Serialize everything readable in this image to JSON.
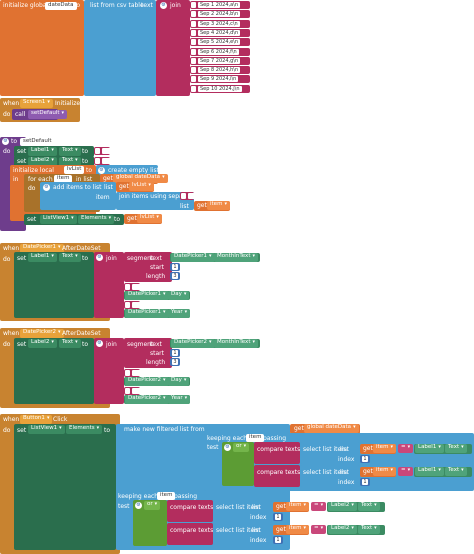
{
  "global_block": {
    "keyword": "initialize global",
    "var_name": "dateData",
    "to": "to",
    "list_from_csv": "list from csv table",
    "text": "text",
    "join": "join",
    "rows": [
      "Sep 1 2024,a\\n",
      "Sep 2 2024,b\\n",
      "Sep 3 2024,c\\n",
      "Sep 4 2024,d\\n",
      "Sep 5 2024,e\\n",
      "Sep 6 2024,f\\n",
      "Sep 7 2024,g\\n",
      "Sep 8 2024,h\\n",
      "Sep 9 2024,i\\n",
      "Sep 10 2024,j\\n"
    ]
  },
  "screen_init": {
    "when": "when",
    "component": "Screen1",
    "event": "Initialize",
    "do": "do",
    "call": "call",
    "proc": "setDefault"
  },
  "proc_def": {
    "to": "to",
    "name": "setDefault",
    "do": "do",
    "set": "set",
    "label1": "Label1",
    "label2": "Label2",
    "text_prop": "Text",
    "to_kw": "to",
    "init_local": "initialize local",
    "local_name": "lvList",
    "to2": "to",
    "create_empty": "create empty list",
    "in": "in",
    "for_each": "for each",
    "item": "item",
    "in_list": "in list",
    "get": "get",
    "global_dd": "global dateData",
    "do2": "do",
    "add_items": "add items to list",
    "list": "list",
    "lvlist_ref": "lvList",
    "item_kw": "item",
    "join_items": "join items using separator",
    "list_kw": "list",
    "item_ref": "item",
    "listview": "ListView1",
    "elements": "Elements"
  },
  "dp1": {
    "when": "when",
    "component": "DatePicker1",
    "event": "AfterDateSet",
    "do": "do",
    "set": "set",
    "label": "Label1",
    "prop": "Text",
    "to": "to",
    "join": "join",
    "segment": "segment",
    "text": "text",
    "start": "start",
    "length": "length",
    "month_prop": "MonthInText",
    "day_prop": "Day",
    "year_prop": "Year",
    "start_val": "1",
    "length_val": "3"
  },
  "dp2": {
    "when": "when",
    "component": "DatePicker2",
    "event": "AfterDateSet",
    "do": "do",
    "set": "set",
    "label": "Label2",
    "prop": "Text",
    "to": "to",
    "join": "join",
    "segment": "segment",
    "text": "text",
    "start": "start",
    "length": "length",
    "month_prop": "MonthInText",
    "day_prop": "Day",
    "year_prop": "Year",
    "start_val": "1",
    "length_val": "3"
  },
  "btn": {
    "when": "when",
    "component": "Button1",
    "event": "Click",
    "do": "do",
    "set": "set",
    "listview": "ListView1",
    "prop": "Elements",
    "to": "to",
    "filter": "make new filtered list from",
    "get": "get",
    "global_dd": "global dateData",
    "keeping": "keeping each",
    "item": "item",
    "passing": "passing",
    "test": "test",
    "or": "or",
    "compare": "compare texts",
    "select": "select list item",
    "list": "list",
    "index": "index",
    "eq": "=",
    "label1": "Label1",
    "label2": "Label2",
    "text_prop": "Text",
    "idx1": "1"
  }
}
